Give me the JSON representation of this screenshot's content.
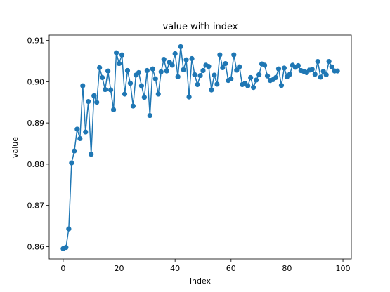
{
  "chart_data": {
    "type": "line",
    "title": "value with index",
    "xlabel": "index",
    "ylabel": "value",
    "xlim": [
      -5,
      103
    ],
    "ylim": [
      0.857,
      0.9113
    ],
    "xticks": [
      0,
      20,
      40,
      60,
      80,
      100
    ],
    "yticks": [
      0.86,
      0.87,
      0.88,
      0.89,
      0.9,
      0.91
    ],
    "ytick_labels": [
      "0.86",
      "0.87",
      "0.88",
      "0.89",
      "0.90",
      "0.91"
    ],
    "grid": false,
    "marker": "circle",
    "color": "#1f77b4",
    "series": [
      {
        "x": [
          0,
          1,
          2,
          3,
          4,
          5,
          6,
          7,
          8,
          9,
          10,
          11,
          12,
          13,
          14,
          15,
          16,
          17,
          18,
          19,
          20,
          21,
          22,
          23,
          24,
          25,
          26,
          27,
          28,
          29,
          30,
          31,
          32,
          33,
          34,
          35,
          36,
          37,
          38,
          39,
          40,
          41,
          42,
          43,
          44,
          45,
          46,
          47,
          48,
          49,
          50,
          51,
          52,
          53,
          54,
          55,
          56,
          57,
          58,
          59,
          60,
          61,
          62,
          63,
          64,
          65,
          66,
          67,
          68,
          69,
          70,
          71,
          72,
          73,
          74,
          75,
          76,
          77,
          78,
          79,
          80,
          81,
          82,
          83,
          84,
          85,
          86,
          87,
          88,
          89,
          90,
          91,
          92,
          93,
          94,
          95,
          96,
          97,
          98
        ],
        "values": [
          0.8595,
          0.8598,
          0.8643,
          0.8803,
          0.8832,
          0.8885,
          0.8862,
          0.899,
          0.8878,
          0.8952,
          0.8824,
          0.8966,
          0.895,
          0.9034,
          0.901,
          0.8981,
          0.9026,
          0.898,
          0.8932,
          0.907,
          0.9044,
          0.9065,
          0.897,
          0.9027,
          0.8996,
          0.8941,
          0.9016,
          0.9022,
          0.899,
          0.8962,
          0.9027,
          0.8918,
          0.9031,
          0.9007,
          0.897,
          0.9024,
          0.9054,
          0.9026,
          0.9047,
          0.904,
          0.9068,
          0.9012,
          0.9085,
          0.9029,
          0.9053,
          0.8963,
          0.9056,
          0.9017,
          0.8993,
          0.9015,
          0.9027,
          0.904,
          0.9037,
          0.898,
          0.9016,
          0.8994,
          0.9065,
          0.9034,
          0.9044,
          0.9003,
          0.9007,
          0.9065,
          0.9028,
          0.9036,
          0.8993,
          0.8996,
          0.899,
          0.901,
          0.8986,
          0.9004,
          0.9017,
          0.9043,
          0.904,
          0.9014,
          0.9003,
          0.9005,
          0.901,
          0.9031,
          0.8991,
          0.9033,
          0.9012,
          0.9018,
          0.904,
          0.9035,
          0.9039,
          0.9027,
          0.9025,
          0.9022,
          0.9028,
          0.903,
          0.9018,
          0.9049,
          0.9011,
          0.9025,
          0.9017,
          0.9049,
          0.9036,
          0.9026,
          0.9026
        ]
      }
    ]
  }
}
